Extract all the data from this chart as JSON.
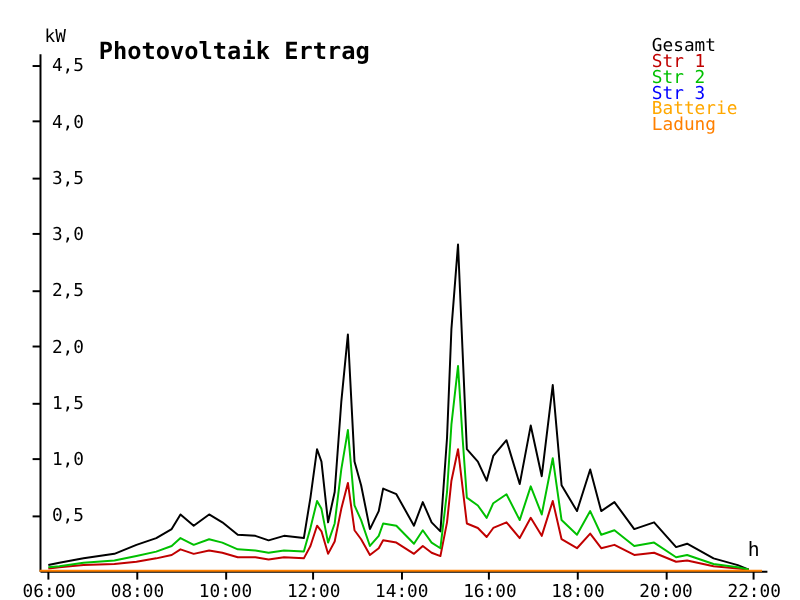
{
  "chart_data": {
    "type": "line",
    "title": "Photovoltaik Ertrag",
    "xlabel": "h",
    "ylabel": "kW",
    "x": [
      6.0,
      6.25,
      6.8,
      7.5,
      8.0,
      8.45,
      8.8,
      9.0,
      9.3,
      9.65,
      9.95,
      10.3,
      10.7,
      11.0,
      11.35,
      11.8,
      11.95,
      12.1,
      12.2,
      12.35,
      12.5,
      12.65,
      12.8,
      12.95,
      13.1,
      13.3,
      13.5,
      13.6,
      13.9,
      14.3,
      14.5,
      14.7,
      14.9,
      15.05,
      15.15,
      15.3,
      15.4,
      15.5,
      15.75,
      15.95,
      16.1,
      16.4,
      16.7,
      16.95,
      17.2,
      17.45,
      17.65,
      18.0,
      18.3,
      18.55,
      18.85,
      19.3,
      19.75,
      20.25,
      20.5,
      21.1,
      21.65,
      21.9
    ],
    "series": [
      {
        "name": "Gesamt",
        "color": "#000000",
        "values": [
          0.05,
          0.07,
          0.11,
          0.15,
          0.23,
          0.29,
          0.37,
          0.5,
          0.4,
          0.5,
          0.43,
          0.32,
          0.31,
          0.27,
          0.31,
          0.29,
          0.65,
          1.08,
          0.97,
          0.43,
          0.7,
          1.5,
          2.1,
          0.97,
          0.76,
          0.37,
          0.53,
          0.73,
          0.68,
          0.4,
          0.61,
          0.43,
          0.35,
          1.18,
          2.15,
          2.9,
          1.98,
          1.08,
          0.97,
          0.8,
          1.02,
          1.16,
          0.77,
          1.29,
          0.84,
          1.65,
          0.76,
          0.53,
          0.9,
          0.53,
          0.61,
          0.37,
          0.43,
          0.21,
          0.24,
          0.11,
          0.05,
          0.01
        ]
      },
      {
        "name": "Str 1",
        "color": "#c00000",
        "values": [
          0.02,
          0.03,
          0.05,
          0.06,
          0.08,
          0.11,
          0.14,
          0.19,
          0.15,
          0.18,
          0.16,
          0.12,
          0.12,
          0.1,
          0.12,
          0.11,
          0.22,
          0.4,
          0.35,
          0.15,
          0.26,
          0.55,
          0.78,
          0.36,
          0.28,
          0.14,
          0.2,
          0.27,
          0.25,
          0.15,
          0.22,
          0.16,
          0.13,
          0.43,
          0.8,
          1.08,
          0.75,
          0.42,
          0.38,
          0.3,
          0.38,
          0.43,
          0.29,
          0.47,
          0.31,
          0.62,
          0.28,
          0.2,
          0.33,
          0.2,
          0.23,
          0.14,
          0.16,
          0.08,
          0.09,
          0.04,
          0.02,
          0.01
        ]
      },
      {
        "name": "Str 2",
        "color": "#00c000",
        "values": [
          0.03,
          0.04,
          0.07,
          0.09,
          0.13,
          0.17,
          0.22,
          0.29,
          0.23,
          0.28,
          0.25,
          0.19,
          0.18,
          0.16,
          0.18,
          0.17,
          0.38,
          0.62,
          0.55,
          0.25,
          0.42,
          0.9,
          1.25,
          0.58,
          0.45,
          0.22,
          0.31,
          0.42,
          0.4,
          0.24,
          0.36,
          0.25,
          0.2,
          0.7,
          1.3,
          1.82,
          1.2,
          0.65,
          0.58,
          0.47,
          0.6,
          0.68,
          0.45,
          0.75,
          0.5,
          1.0,
          0.45,
          0.32,
          0.53,
          0.32,
          0.36,
          0.22,
          0.25,
          0.12,
          0.14,
          0.06,
          0.03,
          0.01
        ]
      },
      {
        "name": "Str 3",
        "color": "#0000ff",
        "values": [
          null,
          null,
          null,
          null,
          null,
          null,
          null,
          null,
          null,
          null,
          null,
          null,
          null,
          null,
          null,
          null,
          null,
          null,
          null,
          null,
          null,
          null,
          null,
          null,
          null,
          null,
          null,
          null,
          null,
          null,
          null,
          null,
          null,
          null,
          null,
          null,
          null,
          null,
          null,
          null,
          null,
          null,
          null,
          null,
          null,
          null,
          null,
          null,
          null,
          null,
          null,
          null,
          null,
          null,
          null,
          null,
          null,
          null
        ]
      },
      {
        "name": "Batterie",
        "color": "#ffa800",
        "values": [
          null,
          null,
          null,
          null,
          null,
          null,
          null,
          null,
          null,
          null,
          null,
          null,
          null,
          null,
          null,
          null,
          null,
          null,
          null,
          null,
          null,
          null,
          null,
          null,
          null,
          null,
          null,
          null,
          null,
          null,
          null,
          null,
          null,
          null,
          null,
          null,
          null,
          null,
          null,
          null,
          null,
          null,
          null,
          null,
          null,
          null,
          null,
          null,
          null,
          null,
          null,
          null,
          null,
          null,
          null,
          null,
          null,
          null
        ]
      },
      {
        "name": "Ladung",
        "color": "#ff8000",
        "x": [
          5.8,
          22.2
        ],
        "values": [
          0,
          0
        ]
      }
    ],
    "xlim": [
      5.8,
      22.3
    ],
    "ylim": [
      0,
      4.6
    ],
    "xticks": [
      {
        "value": 6,
        "label": "06:00"
      },
      {
        "value": 8,
        "label": "08:00"
      },
      {
        "value": 10,
        "label": "10:00"
      },
      {
        "value": 12,
        "label": "12:00"
      },
      {
        "value": 14,
        "label": "14:00"
      },
      {
        "value": 16,
        "label": "16:00"
      },
      {
        "value": 18,
        "label": "18:00"
      },
      {
        "value": 20,
        "label": "20:00"
      },
      {
        "value": 22,
        "label": "22:00"
      }
    ],
    "yticks": [
      {
        "value": 0.5,
        "label": "0,5"
      },
      {
        "value": 1.0,
        "label": "1,0"
      },
      {
        "value": 1.5,
        "label": "1,5"
      },
      {
        "value": 2.0,
        "label": "2,0"
      },
      {
        "value": 2.5,
        "label": "2,5"
      },
      {
        "value": 3.0,
        "label": "3,0"
      },
      {
        "value": 3.5,
        "label": "3,5"
      },
      {
        "value": 4.0,
        "label": "4,0"
      },
      {
        "value": 4.5,
        "label": "4,5"
      }
    ],
    "grid": false,
    "legend": "top right",
    "marker": "none",
    "line_style": "solid"
  }
}
